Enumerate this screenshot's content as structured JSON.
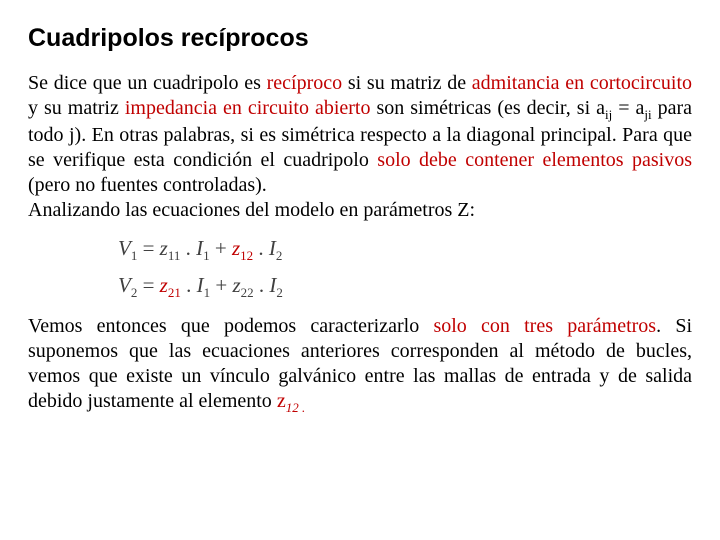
{
  "title": "Cuadripolos recíprocos",
  "colors": {
    "highlight": "#c00000",
    "text": "#000000",
    "bg": "#ffffff",
    "eq": "#404040"
  },
  "fontsize": {
    "title": 25,
    "body": 20,
    "equations": 21,
    "sub": 13
  },
  "p1": {
    "t1": "Se dice que un cuadripolo es ",
    "h1": "recíproco",
    "t2": " si su matriz de ",
    "h2": "admitancia en cortocircuito",
    "t3": " y su matriz ",
    "h3": "impedancia en circuito abierto",
    "t4": " son simétricas (es decir, si a",
    "sub_ij": "ij",
    "t5": " = a",
    "sub_ji": "ji",
    "t6": " para todo j). En otras palabras, si es simétrica respecto a la diagonal principal. Para que se verifique esta condición el cuadripolo ",
    "h4": "solo debe contener elementos pasivos",
    "t7": " (pero no fuentes controladas).",
    "t8": "Analizando las ecuaciones del modelo en parámetros Z:"
  },
  "eq": {
    "V": "V",
    "z": "z",
    "I": "I",
    "eq": " = ",
    "dot": " . ",
    "plus": " + ",
    "s1": "1",
    "s2": "2",
    "s11": "11",
    "s12": "12",
    "s21": "21",
    "s22": "22"
  },
  "p2": {
    "t1": "Vemos entonces que podemos caracterizarlo ",
    "h1": "solo con tres paráme­tros",
    "t2": ". Si suponemos que las ecuaciones anteriores corresponden al método de bucles, vemos que existe un vínculo galvánico entre las mallas de entrada y de salida debido justamente al elemento ",
    "h2": "z",
    "h2sub": "12 .",
    "t3": ""
  }
}
